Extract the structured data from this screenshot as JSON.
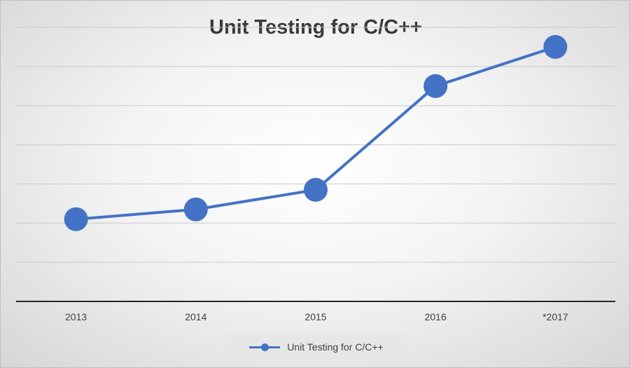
{
  "chart_data": {
    "type": "line",
    "title": "Unit Testing for C/C++",
    "categories": [
      "2013",
      "2014",
      "2015",
      "2016",
      "*2017"
    ],
    "series": [
      {
        "name": "Unit Testing for C/C++",
        "values": [
          2.1,
          2.35,
          2.85,
          5.5,
          6.5
        ]
      }
    ],
    "ylim": [
      0,
      7
    ],
    "y_gridlines": true,
    "y_tick_labels_shown": false,
    "legend_position": "bottom",
    "color": "#4472c4"
  }
}
